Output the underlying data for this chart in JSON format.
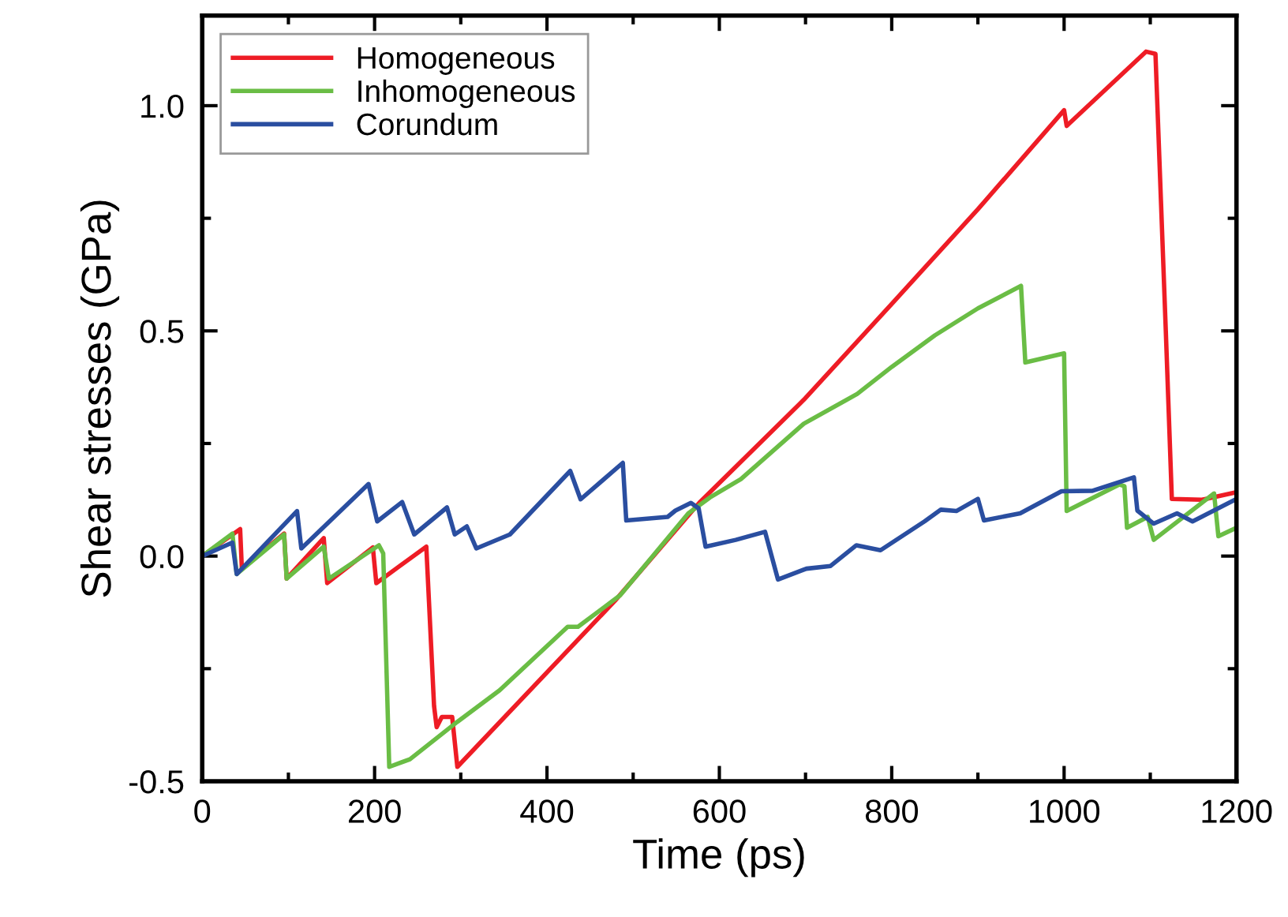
{
  "chart_data": {
    "type": "line",
    "xlabel": "Time (ps)",
    "ylabel": "Shear stresses (GPa)",
    "xlim": [
      0,
      1200
    ],
    "ylim": [
      -0.5,
      1.2
    ],
    "xticks": [
      0,
      200,
      400,
      600,
      800,
      1000,
      1200
    ],
    "yticks": [
      -0.5,
      {
        "value": 0,
        "label": "0.0"
      },
      0.5,
      {
        "value": 1,
        "label": "1.0"
      }
    ],
    "grid": false,
    "legend": "top left",
    "marker": "none",
    "line_style": "solid",
    "series": [
      {
        "name": "Homogeneous",
        "color": "#ee1c25",
        "x": [
          0,
          44,
          46,
          95,
          98,
          141,
          145,
          198,
          202,
          260,
          269,
          272,
          278,
          290,
          296,
          479,
          577,
          698,
          800,
          900,
          1000,
          1003,
          1095,
          1106,
          1118,
          1125,
          1160,
          1200
        ],
        "values": [
          0,
          0.06,
          -0.028,
          0.05,
          -0.05,
          0.04,
          -0.06,
          0.019,
          -0.06,
          0.021,
          -0.333,
          -0.38,
          -0.357,
          -0.357,
          -0.468,
          -0.099,
          0.119,
          0.347,
          0.56,
          0.77,
          0.99,
          0.955,
          1.12,
          1.115,
          0.5,
          0.127,
          0.125,
          0.142
        ]
      },
      {
        "name": "Inhomogeneous",
        "color": "#6abd45",
        "x": [
          0,
          35,
          40,
          95,
          98,
          141,
          147,
          205,
          210,
          217,
          241,
          296,
          345,
          424,
          436,
          485,
          564,
          589,
          625,
          698,
          760,
          800,
          850,
          900,
          950,
          955,
          1000,
          1003,
          1064,
          1070,
          1073,
          1097,
          1104,
          1174,
          1179,
          1200
        ],
        "values": [
          0,
          0.05,
          -0.04,
          0.048,
          -0.05,
          0.021,
          -0.05,
          0.024,
          0.006,
          -0.468,
          -0.451,
          -0.368,
          -0.298,
          -0.157,
          -0.157,
          -0.087,
          0.095,
          0.13,
          0.171,
          0.294,
          0.36,
          0.42,
          0.49,
          0.55,
          0.6,
          0.43,
          0.45,
          0.1,
          0.159,
          0.155,
          0.063,
          0.087,
          0.036,
          0.139,
          0.044,
          0.063
        ]
      },
      {
        "name": "Corundum",
        "color": "#2a4ea0",
        "x": [
          0,
          35,
          40,
          46,
          110,
          115,
          193,
          203,
          232,
          246,
          284,
          293,
          307,
          318,
          357,
          427,
          439,
          488,
          492,
          540,
          549,
          567,
          576,
          584,
          619,
          653,
          668,
          701,
          729,
          759,
          787,
          838,
          857,
          875,
          900,
          907,
          949,
          997,
          1033,
          1081,
          1085,
          1104,
          1131,
          1149,
          1200
        ],
        "values": [
          0,
          0.03,
          -0.04,
          -0.028,
          0.1,
          0.017,
          0.16,
          0.077,
          0.12,
          0.048,
          0.108,
          0.048,
          0.066,
          0.017,
          0.048,
          0.189,
          0.126,
          0.207,
          0.079,
          0.087,
          0.101,
          0.118,
          0.106,
          0.021,
          0.036,
          0.054,
          -0.052,
          -0.028,
          -0.022,
          0.024,
          0.013,
          0.077,
          0.103,
          0.1,
          0.127,
          0.079,
          0.095,
          0.144,
          0.145,
          0.175,
          0.101,
          0.072,
          0.095,
          0.077,
          0.127
        ]
      }
    ]
  }
}
